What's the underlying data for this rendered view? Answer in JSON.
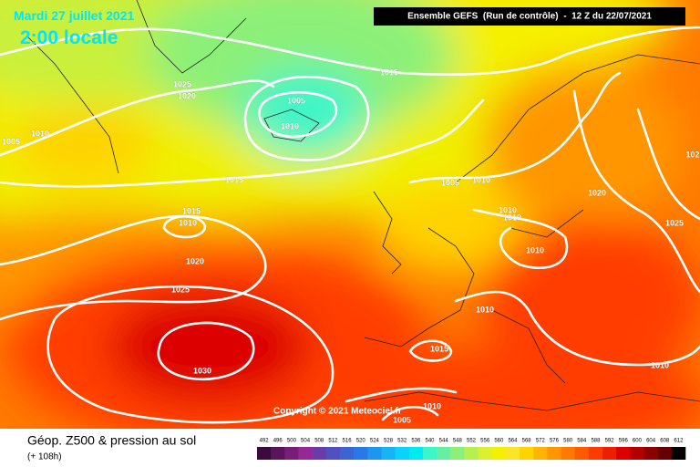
{
  "header": {
    "date": "Mardi 27 juillet 2021",
    "time": "2:00 locale",
    "run": "Ensemble GEFS  (Run de contrôle)  -  12 Z du 22/07/2021"
  },
  "isobar_labels": [
    1025,
    1020,
    1005,
    1010,
    1015,
    1005,
    1010,
    1015,
    1015,
    1010,
    1020,
    1025,
    1030,
    1005,
    1010,
    1010,
    1010,
    1020,
    1025,
    1010,
    1010,
    1015,
    1010,
    1010,
    1005,
    102
  ],
  "copyright": "Copyright © 2021 Meteociel.fr",
  "footer": {
    "title": "Géop. Z500 & pression au sol",
    "lead": "(+ 108h)"
  },
  "legend": {
    "values": [
      492,
      496,
      500,
      504,
      508,
      512,
      516,
      520,
      524,
      528,
      532,
      536,
      540,
      544,
      548,
      552,
      556,
      560,
      564,
      568,
      572,
      576,
      580,
      584,
      588,
      592,
      596,
      600,
      604,
      608,
      612
    ],
    "colors": [
      "#3c0a3c",
      "#5a145a",
      "#781e78",
      "#962896",
      "#6a3ca8",
      "#5050c0",
      "#3c64d2",
      "#2878e6",
      "#1e96f0",
      "#14b4f5",
      "#0ad2fa",
      "#00ebf0",
      "#3cf5c8",
      "#64f0a0",
      "#8cf078",
      "#b4f050",
      "#dcf032",
      "#f5f000",
      "#fae628",
      "#ffd200",
      "#ffb400",
      "#ff9600",
      "#ff7800",
      "#ff5a00",
      "#ff3c00",
      "#f01e00",
      "#dc0000",
      "#b40000",
      "#8c0000",
      "#640000",
      "#000000"
    ]
  }
}
